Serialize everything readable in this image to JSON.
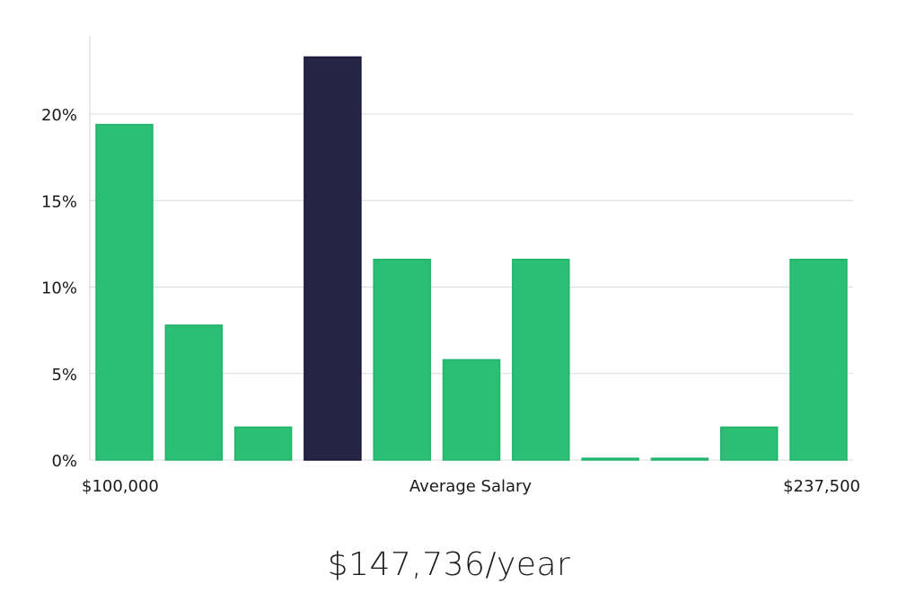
{
  "chart_data": {
    "type": "bar",
    "title": "",
    "xlabel": "Average Salary",
    "ylabel": "",
    "x_min_label": "$100,000",
    "x_max_label": "$237,500",
    "ylim": [
      0,
      24
    ],
    "yticks": [
      0,
      5,
      10,
      15,
      20
    ],
    "ytick_labels": [
      "0%",
      "5%",
      "10%",
      "15%",
      "20%"
    ],
    "values": [
      19.4,
      7.8,
      1.9,
      23.3,
      11.6,
      5.8,
      11.6,
      0.1,
      0.1,
      1.9,
      11.6
    ],
    "highlight_index": 3,
    "colors": {
      "bar": "#2bbf76",
      "bar_edge": "#22b36b",
      "highlight": "#272545",
      "highlight_edge": "#15133a",
      "grid": "#dcdcdc",
      "axis": "#d0d0d0"
    },
    "grid": true
  },
  "summary": {
    "salary": "$147,736/year"
  }
}
